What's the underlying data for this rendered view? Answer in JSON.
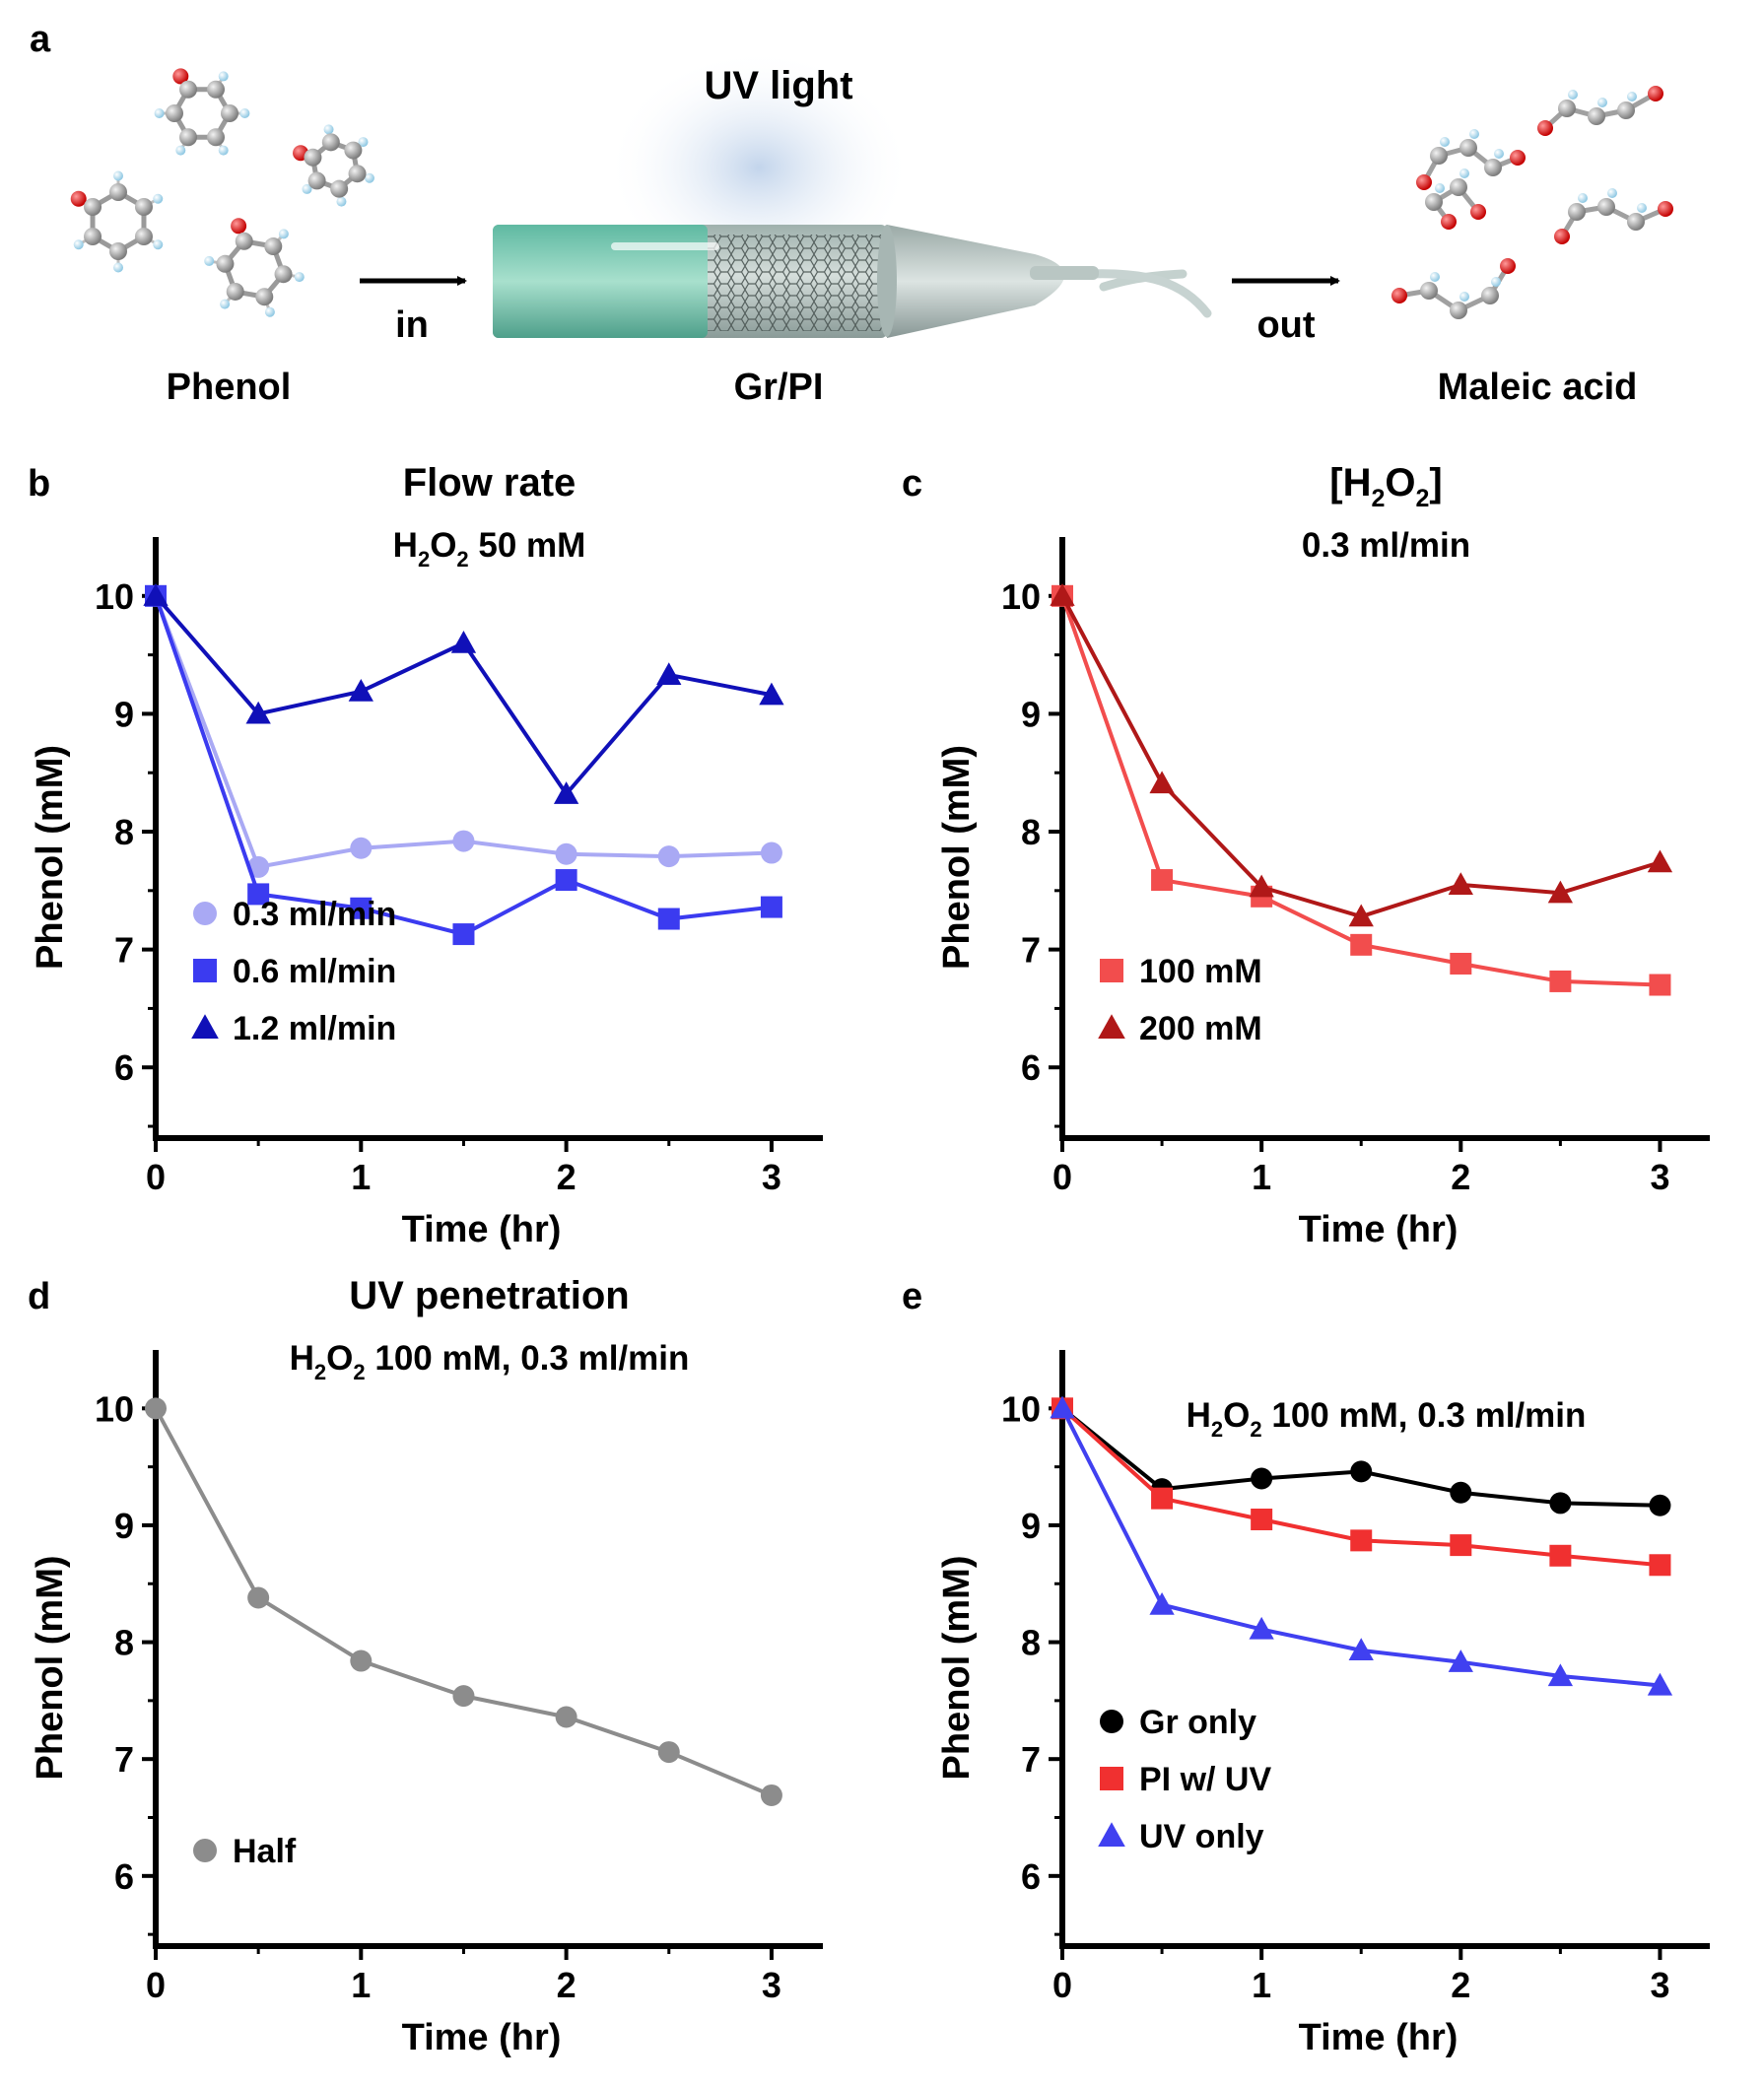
{
  "figure": {
    "panel_a": {
      "letter": "a",
      "uv_label": "UV light",
      "reactant_label": "Phenol",
      "in_label": "in",
      "reactor_label": "Gr/PI",
      "out_label": "out",
      "product_label": "Maleic acid"
    }
  },
  "chart_data": [
    {
      "panel": "b",
      "type": "line",
      "title": "Flow rate",
      "subtitle": {
        "prefix": "H",
        "sub1": "2",
        "mid": "O",
        "sub2": "2",
        "suffix": " 50 mM"
      },
      "xlabel": "Time (hr)",
      "ylabel": "Phenol  (mM)",
      "x_ticks": [
        "0",
        "1",
        "2",
        "3"
      ],
      "y_ticks": [
        "6",
        "7",
        "8",
        "9",
        "10"
      ],
      "xlim": [
        0,
        3.25
      ],
      "ylim": [
        5.4,
        10.5
      ],
      "legend_position": "bottom-left",
      "x": [
        0,
        0.5,
        1,
        1.5,
        2,
        2.5,
        3
      ],
      "series": [
        {
          "name": "0.3 ml/min",
          "marker": "circle",
          "color": "#a9a9f4",
          "values": [
            10,
            7.7,
            7.86,
            7.92,
            7.81,
            7.79,
            7.82
          ]
        },
        {
          "name": "0.6 ml/min",
          "marker": "square",
          "color": "#3b3bf0",
          "values": [
            10,
            7.47,
            7.35,
            7.13,
            7.59,
            7.26,
            7.36
          ]
        },
        {
          "name": "1.2 ml/min",
          "marker": "triangle",
          "color": "#1010b8",
          "values": [
            10,
            9.0,
            9.19,
            9.6,
            8.32,
            9.33,
            9.16
          ]
        }
      ]
    },
    {
      "panel": "c",
      "type": "line",
      "title": {
        "prefix": "[H",
        "sub1": "2",
        "mid": "O",
        "sub2": "2",
        "suffix": "]"
      },
      "subtitle": "0.3 ml/min",
      "xlabel": "Time (hr)",
      "ylabel": "Phenol  (mM)",
      "x_ticks": [
        "0",
        "1",
        "2",
        "3"
      ],
      "y_ticks": [
        "6",
        "7",
        "8",
        "9",
        "10"
      ],
      "xlim": [
        0,
        3.25
      ],
      "ylim": [
        5.4,
        10.5
      ],
      "legend_position": "bottom-left",
      "x": [
        0,
        0.5,
        1,
        1.5,
        2,
        2.5,
        3
      ],
      "series": [
        {
          "name": "100 mM",
          "marker": "square",
          "color": "#f24d4d",
          "values": [
            10,
            7.59,
            7.45,
            7.04,
            6.88,
            6.73,
            6.7
          ]
        },
        {
          "name": "200 mM",
          "marker": "triangle",
          "color": "#b01818",
          "values": [
            10,
            8.41,
            7.53,
            7.28,
            7.55,
            7.48,
            7.74
          ]
        }
      ]
    },
    {
      "panel": "d",
      "type": "line",
      "title": "UV penetration",
      "subtitle": {
        "prefix": "H",
        "sub1": "2",
        "mid": "O",
        "sub2": "2",
        "suffix": " 100 mM, 0.3 ml/min"
      },
      "xlabel": "Time (hr)",
      "ylabel": "Phenol  (mM)",
      "x_ticks": [
        "0",
        "1",
        "2",
        "3"
      ],
      "y_ticks": [
        "6",
        "7",
        "8",
        "9",
        "10"
      ],
      "xlim": [
        0,
        3.25
      ],
      "ylim": [
        5.4,
        10.5
      ],
      "legend_position": "bottom-left",
      "x": [
        0,
        0.5,
        1,
        1.5,
        2,
        2.5,
        3
      ],
      "series": [
        {
          "name": "Half",
          "marker": "circle",
          "color": "#8c8c8c",
          "values": [
            10,
            8.38,
            7.84,
            7.54,
            7.36,
            7.06,
            6.69
          ]
        }
      ]
    },
    {
      "panel": "e",
      "type": "line",
      "title": "",
      "subtitle": {
        "prefix": "H",
        "sub1": "2",
        "mid": "O",
        "sub2": "2",
        "suffix": " 100 mM, 0.3 ml/min"
      },
      "xlabel": "Time (hr)",
      "ylabel": "Phenol  (mM)",
      "x_ticks": [
        "0",
        "1",
        "2",
        "3"
      ],
      "y_ticks": [
        "6",
        "7",
        "8",
        "9",
        "10"
      ],
      "xlim": [
        0,
        3.25
      ],
      "ylim": [
        5.4,
        10.5
      ],
      "legend_position": "bottom-left",
      "x": [
        0,
        0.5,
        1,
        1.5,
        2,
        2.5,
        3
      ],
      "series": [
        {
          "name": "Gr only",
          "marker": "circle",
          "color": "#000000",
          "values": [
            10,
            9.31,
            9.4,
            9.46,
            9.28,
            9.19,
            9.17
          ]
        },
        {
          "name": "PI w/ UV",
          "marker": "square",
          "color": "#f03030",
          "values": [
            10,
            9.23,
            9.05,
            8.87,
            8.83,
            8.74,
            8.66
          ]
        },
        {
          "name": "UV only",
          "marker": "triangle",
          "color": "#4040f0",
          "values": [
            10,
            8.32,
            8.11,
            7.93,
            7.83,
            7.71,
            7.63
          ]
        }
      ]
    }
  ]
}
